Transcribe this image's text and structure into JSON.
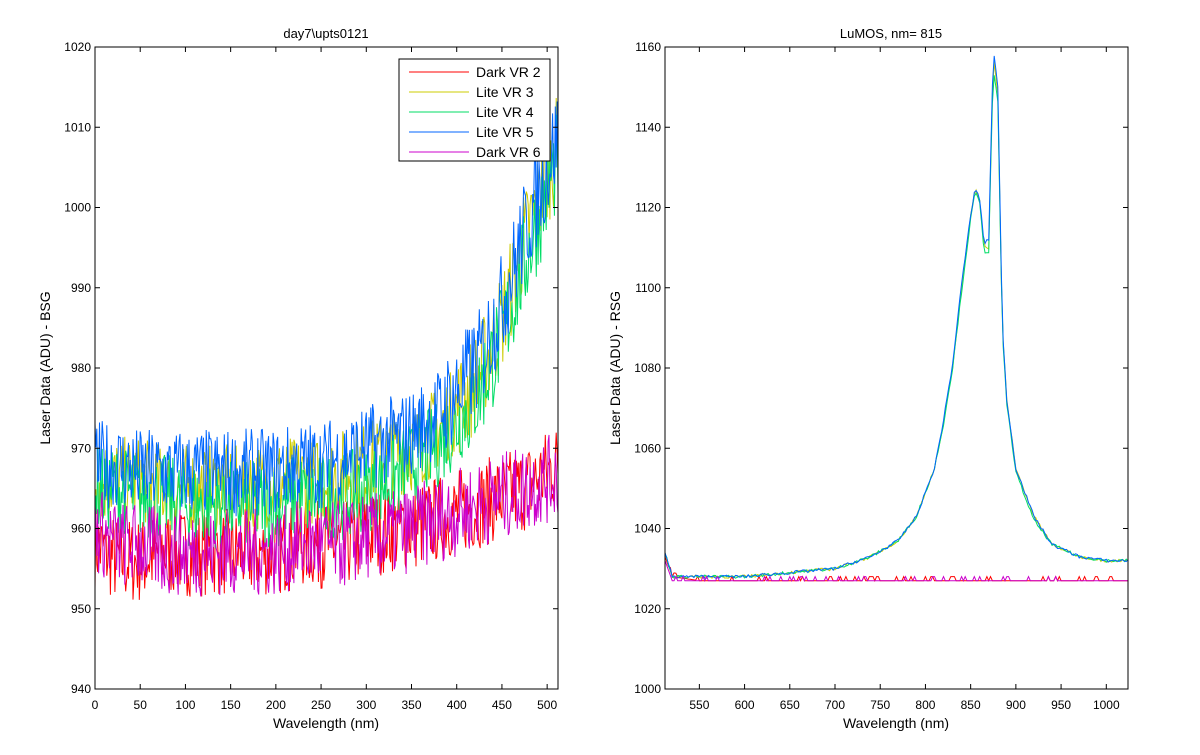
{
  "chart_data": [
    {
      "type": "line",
      "title": "day7\\upts0121",
      "xlabel": "Wavelength (nm)",
      "ylabel": "Laser Data (ADU) - BSG",
      "xlim": [
        0,
        512
      ],
      "ylim": [
        940,
        1020
      ],
      "xticks": [
        0,
        50,
        100,
        150,
        200,
        250,
        300,
        350,
        400,
        450,
        500
      ],
      "yticks": [
        940,
        950,
        960,
        970,
        980,
        990,
        1000,
        1010,
        1020
      ],
      "grid": false,
      "legend": "top-right",
      "x": [
        0,
        25,
        50,
        75,
        100,
        125,
        150,
        175,
        200,
        225,
        250,
        275,
        300,
        325,
        350,
        375,
        400,
        425,
        450,
        475,
        500,
        512
      ],
      "series": [
        {
          "name": "Dark VR 2",
          "color": "#ff0000",
          "values": [
            958,
            956,
            956,
            957,
            957,
            957,
            957,
            957,
            957,
            958,
            958,
            958,
            959,
            960,
            960,
            961,
            962,
            963,
            964,
            965,
            967,
            968
          ]
        },
        {
          "name": "Lite VR 3",
          "color": "#cccc00",
          "values": [
            966,
            966,
            966,
            965,
            965,
            965,
            965,
            965,
            966,
            966,
            966,
            967,
            968,
            969,
            970,
            972,
            975,
            979,
            986,
            996,
            1004,
            1008
          ]
        },
        {
          "name": "Lite VR 4",
          "color": "#00dd66",
          "values": [
            965,
            965,
            964,
            964,
            963,
            963,
            963,
            963,
            963,
            964,
            964,
            964,
            965,
            966,
            968,
            970,
            973,
            977,
            984,
            993,
            1002,
            1006
          ]
        },
        {
          "name": "Lite VR 5",
          "color": "#0066ff",
          "values": [
            968,
            968,
            967,
            967,
            967,
            967,
            967,
            967,
            967,
            968,
            968,
            969,
            970,
            971,
            972,
            974,
            977,
            981,
            988,
            997,
            1005,
            1009
          ]
        },
        {
          "name": "Dark VR 6",
          "color": "#cc00cc",
          "values": [
            960,
            958,
            958,
            957,
            957,
            957,
            957,
            957,
            957,
            958,
            958,
            958,
            959,
            959,
            960,
            961,
            962,
            963,
            964,
            965,
            966,
            967
          ]
        }
      ]
    },
    {
      "type": "line",
      "title": "LuMOS, nm= 815",
      "xlabel": "Wavelength (nm)",
      "ylabel": "Laser Data (ADU) - RSG",
      "xlim": [
        512,
        1024
      ],
      "ylim": [
        1000,
        1160
      ],
      "xticks": [
        550,
        600,
        650,
        700,
        750,
        800,
        850,
        900,
        950,
        1000
      ],
      "yticks": [
        1000,
        1020,
        1040,
        1060,
        1080,
        1100,
        1120,
        1140,
        1160
      ],
      "grid": false,
      "x": [
        512,
        520,
        550,
        600,
        650,
        700,
        740,
        770,
        790,
        810,
        820,
        830,
        840,
        850,
        855,
        860,
        865,
        870,
        875,
        880,
        885,
        890,
        900,
        920,
        940,
        970,
        1000,
        1024
      ],
      "series": [
        {
          "color": "#ff0000",
          "values": [
            1033,
            1028,
            1027,
            1027,
            1027,
            1027,
            1027,
            1027,
            1027,
            1027,
            1027,
            1027,
            1027,
            1027,
            1027,
            1027,
            1027,
            1027,
            1027,
            1027,
            1027,
            1027,
            1027,
            1027,
            1027,
            1027,
            1027,
            1027
          ]
        },
        {
          "color": "#cccc00",
          "values": [
            1034,
            1028,
            1028,
            1028,
            1029,
            1030,
            1033,
            1037,
            1043,
            1055,
            1066,
            1080,
            1100,
            1118,
            1125,
            1122,
            1110,
            1110,
            1158,
            1148,
            1090,
            1072,
            1055,
            1043,
            1036,
            1033,
            1032,
            1032
          ]
        },
        {
          "color": "#00dd66",
          "values": [
            1034,
            1028,
            1028,
            1028,
            1029,
            1030,
            1033,
            1037,
            1043,
            1055,
            1066,
            1080,
            1099,
            1117,
            1124,
            1121,
            1109,
            1109,
            1155,
            1146,
            1089,
            1071,
            1054,
            1042,
            1036,
            1033,
            1032,
            1032
          ]
        },
        {
          "color": "#0066ff",
          "values": [
            1034,
            1028,
            1028,
            1028,
            1029,
            1030,
            1033,
            1037,
            1043,
            1055,
            1067,
            1081,
            1101,
            1118,
            1125,
            1122,
            1111,
            1112,
            1160,
            1150,
            1091,
            1072,
            1055,
            1043,
            1036,
            1033,
            1032,
            1032
          ]
        },
        {
          "color": "#cc00cc",
          "values": [
            1032,
            1027,
            1027,
            1027,
            1027,
            1027,
            1027,
            1027,
            1027,
            1027,
            1027,
            1027,
            1027,
            1027,
            1027,
            1027,
            1027,
            1027,
            1027,
            1027,
            1027,
            1027,
            1027,
            1027,
            1027,
            1027,
            1027,
            1027
          ]
        }
      ]
    }
  ]
}
